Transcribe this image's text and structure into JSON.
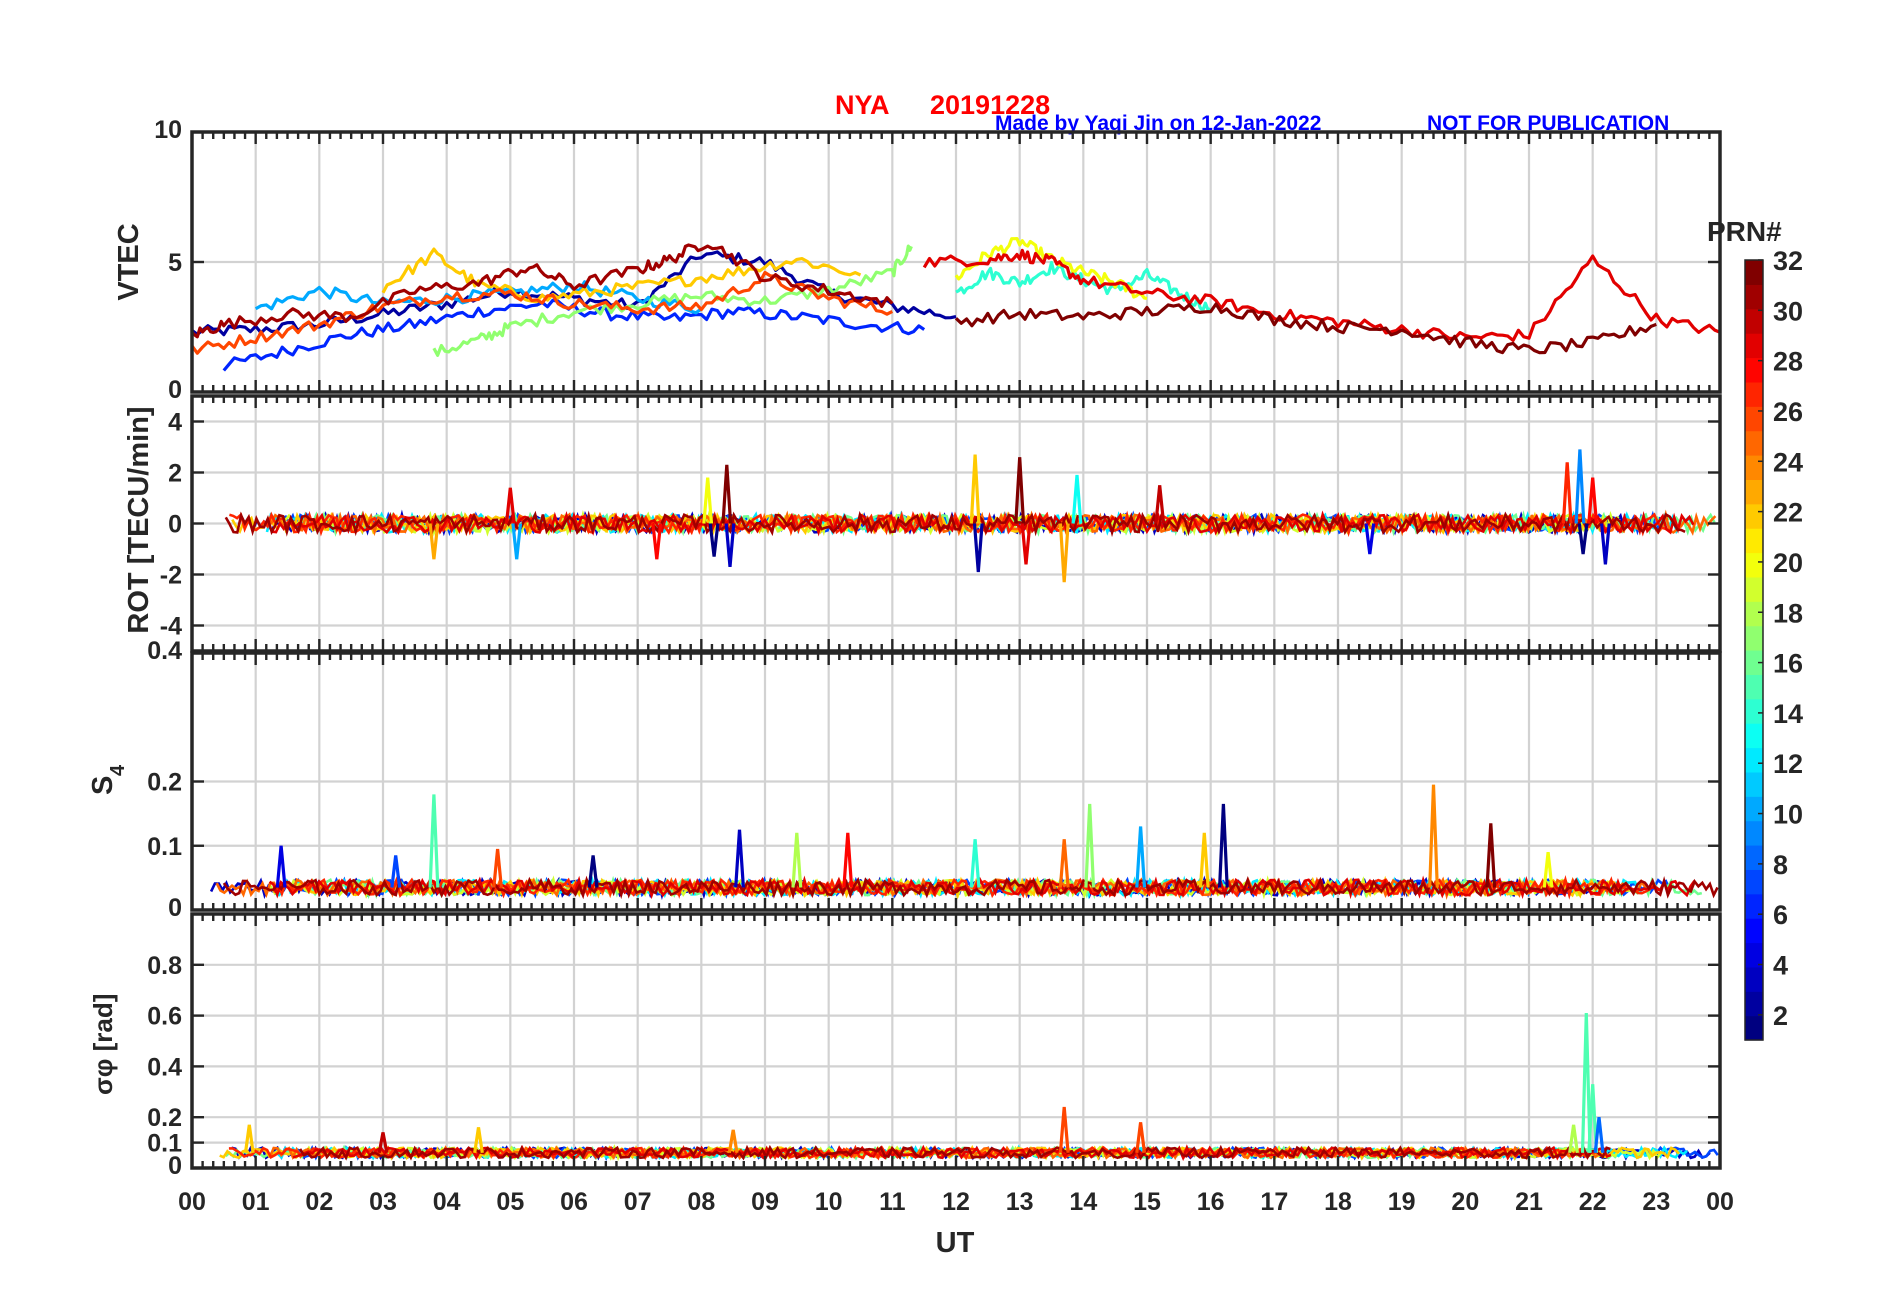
{
  "header": {
    "station": "NYA",
    "date": "20191228",
    "credit": "Made by Yaqi Jin on 12-Jan-2022",
    "notice": "NOT FOR PUBLICATION"
  },
  "colors": {
    "title": "#ff0000",
    "credit": "#0000ff",
    "grid": "#d2d2d2",
    "axis": "#262626"
  },
  "colorbar": {
    "label": "PRN#",
    "range": [
      1,
      32
    ],
    "ticks": [
      "2",
      "4",
      "6",
      "8",
      "10",
      "12",
      "14",
      "16",
      "18",
      "20",
      "22",
      "24",
      "26",
      "28",
      "30",
      "32"
    ],
    "colormap": "jet"
  },
  "chart_data": [
    {
      "type": "line",
      "name": "vtec",
      "ylabel": "VTEC",
      "xlim": [
        0,
        24
      ],
      "ylim": [
        0,
        10
      ],
      "yticks": [
        "0",
        "5",
        "10"
      ],
      "yticks_values": [
        0,
        5,
        10
      ],
      "grid": true,
      "description_of_values": "slant-to-vertical TEC per satellite, approx 1-6 TECU over the day",
      "series": [
        {
          "prn": 2,
          "x": [
            0.0,
            1.0,
            2.0,
            3.0,
            4.0,
            5.0,
            6.0,
            7.0,
            8.0,
            9.0,
            10.0,
            11.0,
            12.0
          ],
          "y": [
            2.3,
            2.4,
            2.6,
            3.0,
            3.4,
            3.9,
            3.6,
            3.3,
            5.3,
            5.0,
            3.8,
            3.3,
            2.9
          ]
        },
        {
          "prn": 6,
          "x": [
            0.5,
            1.5,
            2.5,
            3.5,
            4.5,
            5.5,
            6.5,
            7.5,
            8.5,
            9.5,
            10.5,
            11.5
          ],
          "y": [
            1.0,
            1.6,
            2.2,
            2.6,
            3.1,
            3.4,
            3.0,
            2.8,
            3.1,
            2.9,
            2.6,
            2.4
          ]
        },
        {
          "prn": 10,
          "x": [
            1.0,
            2.0,
            3.0,
            4.0,
            5.0,
            6.0,
            7.0,
            8.0
          ],
          "y": [
            3.2,
            3.9,
            3.4,
            3.6,
            3.8,
            4.1,
            3.6,
            3.2
          ]
        },
        {
          "prn": 14,
          "x": [
            12.0,
            12.5,
            13.0,
            13.5,
            14.0,
            14.5,
            15.0,
            15.5,
            16.0
          ],
          "y": [
            3.8,
            4.6,
            4.2,
            4.8,
            4.3,
            3.9,
            4.5,
            3.8,
            3.2
          ]
        },
        {
          "prn": 17,
          "x": [
            3.8,
            4.5,
            5.0,
            6.0,
            7.0,
            8.0,
            9.0,
            10.0,
            11.0,
            11.3
          ],
          "y": [
            1.5,
            2.0,
            2.5,
            3.1,
            3.4,
            3.7,
            3.5,
            3.9,
            4.6,
            5.6
          ]
        },
        {
          "prn": 20,
          "x": [
            12.0,
            12.5,
            13.0,
            13.5,
            14.0,
            14.5,
            15.0
          ],
          "y": [
            4.4,
            5.3,
            5.8,
            5.1,
            4.6,
            4.2,
            3.6
          ]
        },
        {
          "prn": 22,
          "x": [
            3.0,
            3.8,
            4.5,
            5.5,
            6.5,
            7.5,
            8.5,
            9.5,
            10.5
          ],
          "y": [
            4.0,
            5.3,
            4.1,
            3.6,
            3.9,
            4.2,
            4.6,
            5.1,
            4.5
          ]
        },
        {
          "prn": 26,
          "x": [
            0.0,
            1.0,
            2.0,
            3.0,
            4.0,
            5.0,
            6.0,
            7.0,
            8.0,
            9.0,
            10.0,
            11.0
          ],
          "y": [
            1.6,
            2.1,
            2.6,
            3.3,
            3.7,
            3.8,
            3.4,
            3.2,
            3.3,
            4.4,
            3.6,
            3.1
          ]
        },
        {
          "prn": 29,
          "x": [
            11.5,
            12.5,
            13.0,
            13.5,
            14.0,
            15.0,
            16.0,
            17.0,
            18.0,
            19.0,
            20.0,
            21.0,
            22.0,
            23.0,
            24.0
          ],
          "y": [
            5.0,
            5.1,
            5.3,
            5.0,
            4.3,
            3.8,
            3.5,
            3.0,
            2.7,
            2.4,
            2.1,
            2.2,
            5.1,
            2.8,
            2.3
          ]
        },
        {
          "prn": 31,
          "x": [
            0.0,
            0.5,
            1.5,
            2.5,
            3.5,
            4.5,
            5.3,
            6.0,
            7.0,
            7.5,
            8.1,
            9.0,
            10.0,
            11.0
          ],
          "y": [
            2.2,
            2.6,
            3.0,
            2.9,
            3.9,
            4.2,
            4.8,
            4.1,
            4.7,
            5.1,
            5.8,
            4.4,
            3.9,
            3.4
          ]
        },
        {
          "prn": 32,
          "x": [
            12.0,
            13.0,
            14.0,
            15.0,
            16.0,
            17.0,
            18.0,
            19.0,
            20.0,
            21.0,
            22.0,
            23.0
          ],
          "y": [
            2.7,
            3.0,
            2.9,
            3.1,
            3.3,
            2.8,
            2.5,
            2.4,
            1.9,
            1.6,
            1.9,
            2.6
          ]
        }
      ]
    },
    {
      "type": "line",
      "name": "rot",
      "ylabel": "ROT [TECU/min]",
      "xlim": [
        0,
        24
      ],
      "ylim": [
        -5,
        5
      ],
      "yticks": [
        "-4",
        "-2",
        "0",
        "2",
        "4"
      ],
      "yticks_values": [
        -4,
        -2,
        0,
        2,
        4
      ],
      "grid": true,
      "spikes": [
        {
          "x": 3.8,
          "y": -1.4
        },
        {
          "x": 5.0,
          "y": 1.4
        },
        {
          "x": 5.1,
          "y": -1.4
        },
        {
          "x": 7.3,
          "y": -1.4
        },
        {
          "x": 8.1,
          "y": 1.8
        },
        {
          "x": 8.2,
          "y": -1.3
        },
        {
          "x": 8.4,
          "y": 2.3
        },
        {
          "x": 8.45,
          "y": -1.7
        },
        {
          "x": 12.3,
          "y": 2.7
        },
        {
          "x": 12.35,
          "y": -1.9
        },
        {
          "x": 13.0,
          "y": 2.6
        },
        {
          "x": 13.1,
          "y": -1.6
        },
        {
          "x": 13.7,
          "y": -2.3
        },
        {
          "x": 13.9,
          "y": 1.9
        },
        {
          "x": 15.2,
          "y": 1.5
        },
        {
          "x": 18.5,
          "y": -1.2
        },
        {
          "x": 21.6,
          "y": 2.4
        },
        {
          "x": 21.8,
          "y": 2.9
        },
        {
          "x": 21.85,
          "y": -1.2
        },
        {
          "x": 22.0,
          "y": 1.8
        },
        {
          "x": 22.2,
          "y": -1.6
        }
      ]
    },
    {
      "type": "line",
      "name": "s4",
      "ylabel": "S4",
      "xlim": [
        0,
        24
      ],
      "ylim": [
        0,
        0.4
      ],
      "yticks": [
        "0",
        "0.1",
        "0.2",
        "0.4"
      ],
      "yticks_values": [
        0,
        0.1,
        0.2,
        0.4
      ],
      "grid": true,
      "spikes": [
        {
          "x": 1.4,
          "y": 0.1
        },
        {
          "x": 3.2,
          "y": 0.085
        },
        {
          "x": 3.8,
          "y": 0.18
        },
        {
          "x": 4.8,
          "y": 0.095
        },
        {
          "x": 6.3,
          "y": 0.085
        },
        {
          "x": 8.6,
          "y": 0.125
        },
        {
          "x": 9.5,
          "y": 0.12
        },
        {
          "x": 10.3,
          "y": 0.12
        },
        {
          "x": 12.3,
          "y": 0.11
        },
        {
          "x": 13.7,
          "y": 0.11
        },
        {
          "x": 14.1,
          "y": 0.165
        },
        {
          "x": 14.9,
          "y": 0.13
        },
        {
          "x": 15.9,
          "y": 0.12
        },
        {
          "x": 16.2,
          "y": 0.165
        },
        {
          "x": 19.5,
          "y": 0.195
        },
        {
          "x": 20.4,
          "y": 0.135
        },
        {
          "x": 21.3,
          "y": 0.09
        }
      ]
    },
    {
      "type": "line",
      "name": "sigma_phi",
      "ylabel": "σφ [rad]",
      "xlabel": "UT",
      "xlim": [
        0,
        24
      ],
      "ylim": [
        0,
        1
      ],
      "yticks": [
        "0",
        "0.1",
        "0.2",
        "0.4",
        "0.6",
        "0.8"
      ],
      "yticks_values": [
        0,
        0.1,
        0.2,
        0.4,
        0.6,
        0.8
      ],
      "xticks": [
        "00",
        "01",
        "02",
        "03",
        "04",
        "05",
        "06",
        "07",
        "08",
        "09",
        "10",
        "11",
        "12",
        "13",
        "14",
        "15",
        "16",
        "17",
        "18",
        "19",
        "20",
        "21",
        "22",
        "23",
        "00"
      ],
      "grid": true,
      "spikes": [
        {
          "x": 0.9,
          "y": 0.17
        },
        {
          "x": 3.0,
          "y": 0.14
        },
        {
          "x": 4.5,
          "y": 0.16
        },
        {
          "x": 8.5,
          "y": 0.15
        },
        {
          "x": 13.7,
          "y": 0.24
        },
        {
          "x": 14.9,
          "y": 0.18
        },
        {
          "x": 21.9,
          "y": 0.61
        },
        {
          "x": 22.0,
          "y": 0.33
        },
        {
          "x": 22.1,
          "y": 0.2
        },
        {
          "x": 21.7,
          "y": 0.17
        }
      ]
    }
  ]
}
